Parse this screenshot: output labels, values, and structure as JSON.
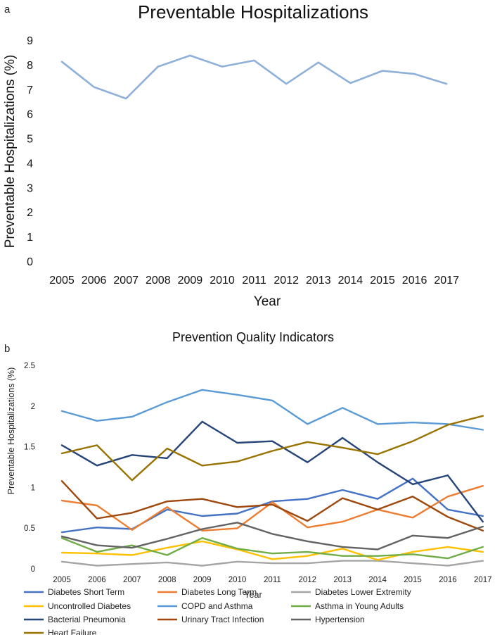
{
  "chart_data": [
    {
      "panel": "a",
      "type": "line",
      "title": "Preventable Hospitalizations",
      "xlabel": "Year",
      "ylabel": "Preventable Hospitalizations (%)",
      "categories": [
        "2005",
        "2006",
        "2007",
        "2008",
        "2009",
        "2010",
        "2011",
        "2012",
        "2013",
        "2014",
        "2015",
        "2016",
        "2017"
      ],
      "ylim": [
        0,
        9
      ],
      "yticks": [
        "0",
        "1",
        "2",
        "3",
        "4",
        "5",
        "6",
        "7",
        "8",
        "9"
      ],
      "grid": false,
      "series": [
        {
          "name": "Preventable Hospitalizations",
          "color": "#8fb0d8",
          "values": [
            8.15,
            7.12,
            6.65,
            7.95,
            8.4,
            7.95,
            8.2,
            7.25,
            8.12,
            7.28,
            7.78,
            7.65,
            7.25
          ]
        }
      ]
    },
    {
      "panel": "b",
      "type": "line",
      "title": "Prevention Quality Indicators",
      "xlabel": "Year",
      "ylabel": "Preventable Hospitalizations (%)",
      "categories": [
        "2005",
        "2006",
        "2007",
        "2008",
        "2009",
        "2010",
        "2011",
        "2012",
        "2013",
        "2014",
        "2015",
        "2016",
        "2017"
      ],
      "ylim": [
        0,
        2.5
      ],
      "yticks": [
        "0",
        "0.5",
        "1",
        "1.5",
        "2",
        "2.5"
      ],
      "grid": false,
      "legend": "bottom",
      "series": [
        {
          "name": "Diabetes Short Term",
          "color": "#4472c4",
          "values": [
            0.44,
            0.5,
            0.48,
            0.72,
            0.64,
            0.67,
            0.82,
            0.85,
            0.96,
            0.85,
            1.1,
            0.72,
            0.64
          ]
        },
        {
          "name": "Diabetes Long Term",
          "color": "#ed7d31",
          "values": [
            0.83,
            0.77,
            0.47,
            0.75,
            0.46,
            0.49,
            0.81,
            0.5,
            0.57,
            0.72,
            0.62,
            0.88,
            1.01
          ]
        },
        {
          "name": "Diabetes Lower Extremity",
          "color": "#a5a5a5",
          "values": [
            0.08,
            0.03,
            0.05,
            0.07,
            0.03,
            0.08,
            0.06,
            0.06,
            0.09,
            0.09,
            0.06,
            0.03,
            0.09
          ]
        },
        {
          "name": "Uncontrolled Diabetes",
          "color": "#ffc000",
          "values": [
            0.19,
            0.18,
            0.16,
            0.25,
            0.33,
            0.23,
            0.11,
            0.15,
            0.24,
            0.1,
            0.2,
            0.26,
            0.2
          ]
        },
        {
          "name": "COPD and Asthma",
          "color": "#5b9bd5",
          "values": [
            1.93,
            1.81,
            1.86,
            2.04,
            2.19,
            2.13,
            2.06,
            1.77,
            1.97,
            1.77,
            1.79,
            1.77,
            1.7
          ]
        },
        {
          "name": "Asthma in Young Adults",
          "color": "#70ad47",
          "values": [
            0.37,
            0.2,
            0.28,
            0.16,
            0.37,
            0.24,
            0.18,
            0.2,
            0.15,
            0.15,
            0.17,
            0.12,
            0.26
          ]
        },
        {
          "name": "Bacterial Pneumonia",
          "color": "#264478",
          "values": [
            1.51,
            1.26,
            1.39,
            1.35,
            1.8,
            1.54,
            1.56,
            1.3,
            1.6,
            1.3,
            1.03,
            1.14,
            0.57
          ]
        },
        {
          "name": "Urinary Tract Infection",
          "color": "#9e480e",
          "values": [
            1.07,
            0.61,
            0.68,
            0.82,
            0.85,
            0.75,
            0.78,
            0.58,
            0.86,
            0.72,
            0.88,
            0.63,
            0.46
          ]
        },
        {
          "name": "Hypertension",
          "color": "#636363",
          "values": [
            0.39,
            0.28,
            0.25,
            0.36,
            0.48,
            0.56,
            0.42,
            0.33,
            0.26,
            0.23,
            0.4,
            0.37,
            0.51
          ]
        },
        {
          "name": "Heart Failure",
          "color": "#997300",
          "values": [
            1.41,
            1.51,
            1.08,
            1.47,
            1.26,
            1.31,
            1.44,
            1.55,
            1.48,
            1.4,
            1.56,
            1.76,
            1.87
          ]
        }
      ]
    }
  ]
}
